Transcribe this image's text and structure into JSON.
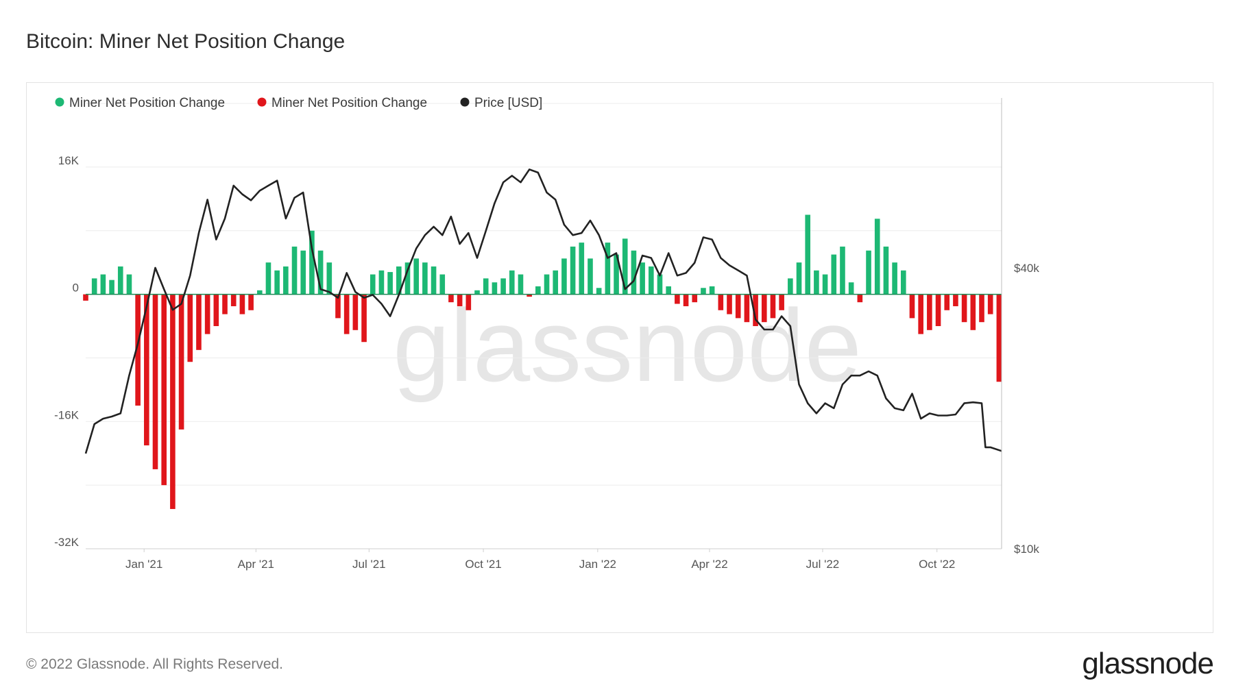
{
  "title": "Bitcoin: Miner Net Position Change",
  "footer": {
    "copyright": "© 2022 Glassnode. All Rights Reserved.",
    "logo": "glassnode",
    "watermark": "glassnode"
  },
  "colors": {
    "positive": "#1db874",
    "negative": "#e0161b",
    "price": "#222222",
    "zero_line": "#1a8a55",
    "grid": "#ececec",
    "watermark": "#e6e6e6"
  },
  "chart_data": {
    "type": "bar",
    "title": "Bitcoin: Miner Net Position Change",
    "legend": [
      {
        "name": "Miner Net Position Change",
        "color": "#1db874"
      },
      {
        "name": "Miner Net Position Change",
        "color": "#e0161b"
      },
      {
        "name": "Price [USD]",
        "color": "#222222"
      }
    ],
    "legend_position": "top-left",
    "x_range": [
      "2020-11-15",
      "2022-11-22"
    ],
    "x_ticks": [
      {
        "label": "Jan '21",
        "date": "2021-01-01"
      },
      {
        "label": "Apr '21",
        "date": "2021-04-01"
      },
      {
        "label": "Jul '21",
        "date": "2021-07-01"
      },
      {
        "label": "Oct '21",
        "date": "2021-10-01"
      },
      {
        "label": "Jan '22",
        "date": "2022-01-01"
      },
      {
        "label": "Apr '22",
        "date": "2022-04-01"
      },
      {
        "label": "Jul '22",
        "date": "2022-07-01"
      },
      {
        "label": "Oct '22",
        "date": "2022-10-01"
      }
    ],
    "y_left": {
      "ticks": [
        {
          "label": "16K",
          "value": 16000
        },
        {
          "label": "0",
          "value": 0
        },
        {
          "label": "-16K",
          "value": -16000
        },
        {
          "label": "-32K",
          "value": -32000
        }
      ],
      "range": [
        -32000,
        24000
      ]
    },
    "y_right": {
      "scale": "log",
      "ticks": [
        {
          "label": "$40k",
          "value": 40000
        },
        {
          "label": "$10k",
          "value": 10000
        }
      ],
      "range": [
        10000,
        90000
      ]
    },
    "grid": true,
    "miner_net_position_change": [
      [
        "2020-11-15",
        -800
      ],
      [
        "2020-11-22",
        2000
      ],
      [
        "2020-11-29",
        2500
      ],
      [
        "2020-12-06",
        1800
      ],
      [
        "2020-12-13",
        3500
      ],
      [
        "2020-12-20",
        2500
      ],
      [
        "2020-12-27",
        -14000
      ],
      [
        "2021-01-03",
        -19000
      ],
      [
        "2021-01-10",
        -22000
      ],
      [
        "2021-01-17",
        -24000
      ],
      [
        "2021-01-24",
        -27000
      ],
      [
        "2021-01-31",
        -17000
      ],
      [
        "2021-02-07",
        -8500
      ],
      [
        "2021-02-14",
        -7000
      ],
      [
        "2021-02-21",
        -5000
      ],
      [
        "2021-02-28",
        -4000
      ],
      [
        "2021-03-07",
        -2500
      ],
      [
        "2021-03-14",
        -1500
      ],
      [
        "2021-03-21",
        -2500
      ],
      [
        "2021-03-28",
        -2000
      ],
      [
        "2021-04-04",
        500
      ],
      [
        "2021-04-11",
        4000
      ],
      [
        "2021-04-18",
        3000
      ],
      [
        "2021-04-25",
        3500
      ],
      [
        "2021-05-02",
        6000
      ],
      [
        "2021-05-09",
        5500
      ],
      [
        "2021-05-16",
        8000
      ],
      [
        "2021-05-23",
        5500
      ],
      [
        "2021-05-30",
        4000
      ],
      [
        "2021-06-06",
        -3000
      ],
      [
        "2021-06-13",
        -5000
      ],
      [
        "2021-06-20",
        -4500
      ],
      [
        "2021-06-27",
        -6000
      ],
      [
        "2021-07-04",
        2500
      ],
      [
        "2021-07-11",
        3000
      ],
      [
        "2021-07-18",
        2800
      ],
      [
        "2021-07-25",
        3500
      ],
      [
        "2021-08-01",
        4000
      ],
      [
        "2021-08-08",
        4500
      ],
      [
        "2021-08-15",
        4000
      ],
      [
        "2021-08-22",
        3500
      ],
      [
        "2021-08-29",
        2500
      ],
      [
        "2021-09-05",
        -1000
      ],
      [
        "2021-09-12",
        -1500
      ],
      [
        "2021-09-19",
        -2000
      ],
      [
        "2021-09-26",
        500
      ],
      [
        "2021-10-03",
        2000
      ],
      [
        "2021-10-10",
        1500
      ],
      [
        "2021-10-17",
        2000
      ],
      [
        "2021-10-24",
        3000
      ],
      [
        "2021-10-31",
        2500
      ],
      [
        "2021-11-07",
        -300
      ],
      [
        "2021-11-14",
        1000
      ],
      [
        "2021-11-21",
        2500
      ],
      [
        "2021-11-28",
        3000
      ],
      [
        "2021-12-05",
        4500
      ],
      [
        "2021-12-12",
        6000
      ],
      [
        "2021-12-19",
        6500
      ],
      [
        "2021-12-26",
        4500
      ],
      [
        "2022-01-02",
        800
      ],
      [
        "2022-01-09",
        6500
      ],
      [
        "2022-01-16",
        5000
      ],
      [
        "2022-01-23",
        7000
      ],
      [
        "2022-01-30",
        5500
      ],
      [
        "2022-02-06",
        4000
      ],
      [
        "2022-02-13",
        3500
      ],
      [
        "2022-02-20",
        2500
      ],
      [
        "2022-02-27",
        1000
      ],
      [
        "2022-03-06",
        -1200
      ],
      [
        "2022-03-13",
        -1500
      ],
      [
        "2022-03-20",
        -1000
      ],
      [
        "2022-03-27",
        800
      ],
      [
        "2022-04-03",
        1000
      ],
      [
        "2022-04-10",
        -2000
      ],
      [
        "2022-04-17",
        -2500
      ],
      [
        "2022-04-24",
        -3000
      ],
      [
        "2022-05-01",
        -3500
      ],
      [
        "2022-05-08",
        -4000
      ],
      [
        "2022-05-15",
        -3500
      ],
      [
        "2022-05-22",
        -3000
      ],
      [
        "2022-05-29",
        -2000
      ],
      [
        "2022-06-05",
        2000
      ],
      [
        "2022-06-12",
        4000
      ],
      [
        "2022-06-19",
        10000
      ],
      [
        "2022-06-26",
        3000
      ],
      [
        "2022-07-03",
        2500
      ],
      [
        "2022-07-10",
        5000
      ],
      [
        "2022-07-17",
        6000
      ],
      [
        "2022-07-24",
        1500
      ],
      [
        "2022-07-31",
        -1000
      ],
      [
        "2022-08-07",
        5500
      ],
      [
        "2022-08-14",
        9500
      ],
      [
        "2022-08-21",
        6000
      ],
      [
        "2022-08-28",
        4000
      ],
      [
        "2022-09-04",
        3000
      ],
      [
        "2022-09-11",
        -3000
      ],
      [
        "2022-09-18",
        -5000
      ],
      [
        "2022-09-25",
        -4500
      ],
      [
        "2022-10-02",
        -4000
      ],
      [
        "2022-10-09",
        -2000
      ],
      [
        "2022-10-16",
        -1500
      ],
      [
        "2022-10-23",
        -3500
      ],
      [
        "2022-10-30",
        -4500
      ],
      [
        "2022-11-06",
        -3500
      ],
      [
        "2022-11-13",
        -2500
      ],
      [
        "2022-11-20",
        -11000
      ]
    ],
    "price_usd": [
      [
        "2020-11-15",
        16000
      ],
      [
        "2020-11-22",
        18500
      ],
      [
        "2020-11-29",
        19000
      ],
      [
        "2020-12-06",
        19200
      ],
      [
        "2020-12-13",
        19500
      ],
      [
        "2020-12-20",
        23500
      ],
      [
        "2020-12-27",
        27500
      ],
      [
        "2021-01-03",
        33000
      ],
      [
        "2021-01-10",
        40000
      ],
      [
        "2021-01-17",
        36000
      ],
      [
        "2021-01-24",
        32500
      ],
      [
        "2021-01-31",
        33500
      ],
      [
        "2021-02-07",
        38500
      ],
      [
        "2021-02-14",
        47500
      ],
      [
        "2021-02-21",
        56000
      ],
      [
        "2021-02-28",
        46000
      ],
      [
        "2021-03-07",
        51000
      ],
      [
        "2021-03-14",
        60000
      ],
      [
        "2021-03-21",
        57500
      ],
      [
        "2021-03-28",
        55800
      ],
      [
        "2021-04-04",
        58500
      ],
      [
        "2021-04-11",
        60000
      ],
      [
        "2021-04-18",
        61500
      ],
      [
        "2021-04-25",
        51000
      ],
      [
        "2021-05-02",
        56500
      ],
      [
        "2021-05-09",
        58000
      ],
      [
        "2021-05-16",
        44000
      ],
      [
        "2021-05-23",
        36000
      ],
      [
        "2021-05-30",
        35500
      ],
      [
        "2021-06-06",
        34500
      ],
      [
        "2021-06-13",
        39000
      ],
      [
        "2021-06-20",
        35500
      ],
      [
        "2021-06-27",
        34500
      ],
      [
        "2021-07-04",
        35000
      ],
      [
        "2021-07-11",
        33500
      ],
      [
        "2021-07-18",
        31500
      ],
      [
        "2021-07-25",
        35000
      ],
      [
        "2021-08-01",
        39500
      ],
      [
        "2021-08-08",
        44000
      ],
      [
        "2021-08-15",
        47000
      ],
      [
        "2021-08-22",
        49000
      ],
      [
        "2021-08-29",
        47000
      ],
      [
        "2021-09-05",
        51500
      ],
      [
        "2021-09-12",
        45000
      ],
      [
        "2021-09-19",
        47500
      ],
      [
        "2021-09-26",
        42000
      ],
      [
        "2021-10-03",
        48000
      ],
      [
        "2021-10-10",
        55000
      ],
      [
        "2021-10-17",
        61000
      ],
      [
        "2021-10-24",
        63000
      ],
      [
        "2021-10-31",
        61000
      ],
      [
        "2021-11-07",
        65000
      ],
      [
        "2021-11-14",
        64000
      ],
      [
        "2021-11-21",
        58000
      ],
      [
        "2021-11-28",
        56000
      ],
      [
        "2021-12-05",
        49500
      ],
      [
        "2021-12-12",
        47000
      ],
      [
        "2021-12-19",
        47500
      ],
      [
        "2021-12-26",
        50500
      ],
      [
        "2022-01-02",
        47000
      ],
      [
        "2022-01-09",
        42000
      ],
      [
        "2022-01-16",
        43000
      ],
      [
        "2022-01-23",
        36000
      ],
      [
        "2022-01-30",
        37500
      ],
      [
        "2022-02-06",
        42500
      ],
      [
        "2022-02-13",
        42000
      ],
      [
        "2022-02-20",
        38500
      ],
      [
        "2022-02-27",
        43000
      ],
      [
        "2022-03-06",
        38500
      ],
      [
        "2022-03-13",
        39000
      ],
      [
        "2022-03-20",
        41000
      ],
      [
        "2022-03-27",
        46500
      ],
      [
        "2022-04-03",
        46000
      ],
      [
        "2022-04-10",
        42000
      ],
      [
        "2022-04-17",
        40500
      ],
      [
        "2022-04-24",
        39500
      ],
      [
        "2022-05-01",
        38500
      ],
      [
        "2022-05-08",
        31000
      ],
      [
        "2022-05-15",
        29500
      ],
      [
        "2022-05-22",
        29500
      ],
      [
        "2022-05-29",
        31500
      ],
      [
        "2022-06-05",
        30000
      ],
      [
        "2022-06-12",
        22500
      ],
      [
        "2022-06-19",
        20500
      ],
      [
        "2022-06-26",
        19500
      ],
      [
        "2022-07-03",
        20500
      ],
      [
        "2022-07-10",
        20000
      ],
      [
        "2022-07-17",
        22500
      ],
      [
        "2022-07-24",
        23500
      ],
      [
        "2022-07-31",
        23500
      ],
      [
        "2022-08-07",
        24000
      ],
      [
        "2022-08-14",
        23500
      ],
      [
        "2022-08-21",
        21000
      ],
      [
        "2022-08-28",
        20000
      ],
      [
        "2022-09-04",
        19800
      ],
      [
        "2022-09-11",
        21500
      ],
      [
        "2022-09-18",
        19000
      ],
      [
        "2022-09-25",
        19500
      ],
      [
        "2022-10-02",
        19300
      ],
      [
        "2022-10-09",
        19300
      ],
      [
        "2022-10-16",
        19400
      ],
      [
        "2022-10-23",
        20500
      ],
      [
        "2022-10-30",
        20600
      ],
      [
        "2022-11-06",
        20500
      ],
      [
        "2022-11-09",
        16500
      ],
      [
        "2022-11-13",
        16500
      ],
      [
        "2022-11-22",
        16200
      ]
    ]
  }
}
